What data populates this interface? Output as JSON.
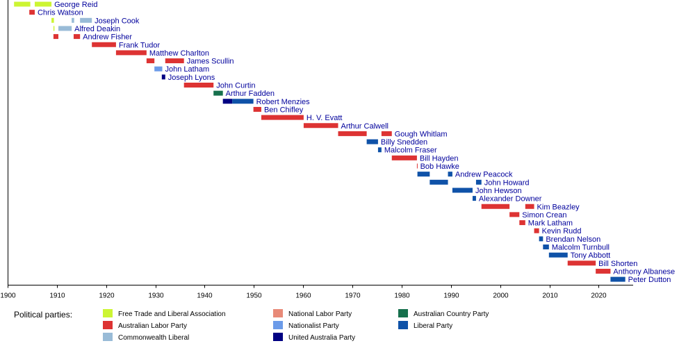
{
  "chart_data": {
    "type": "bar",
    "orientation": "horizontal",
    "xlim": [
      1900,
      2027
    ],
    "xticks": [
      1900,
      1910,
      1920,
      1930,
      1940,
      1950,
      1960,
      1970,
      1980,
      1990,
      2000,
      2010,
      2020
    ],
    "grid": false,
    "legend": {
      "title": "Political parties:",
      "placement": "bottom",
      "items": [
        {
          "label": "Free Trade and Liberal Association",
          "color": "#ccf533"
        },
        {
          "label": "Australian Labor Party",
          "color": "#dd3333"
        },
        {
          "label": "Commonwealth Liberal",
          "color": "#99bbd7"
        },
        {
          "label": "National Labor Party",
          "color": "#e88a78"
        },
        {
          "label": "Nationalist Party",
          "color": "#6b9be9"
        },
        {
          "label": "United Australia Party",
          "color": "#000082"
        },
        {
          "label": "Australian Country Party",
          "color": "#16704d"
        },
        {
          "label": "Liberal Party",
          "color": "#0f52a8"
        }
      ]
    },
    "rows": [
      {
        "name": "George Reid",
        "segments": [
          {
            "start": 1901.3,
            "end": 1904.6,
            "party": "Free Trade and Liberal Association"
          },
          {
            "start": 1905.5,
            "end": 1908.9,
            "party": "Free Trade and Liberal Association"
          }
        ]
      },
      {
        "name": "Chris Watson",
        "segments": [
          {
            "start": 1904.4,
            "end": 1905.5,
            "party": "Australian Labor Party"
          }
        ]
      },
      {
        "name": "Joseph Cook",
        "segments": [
          {
            "start": 1908.9,
            "end": 1909.4,
            "party": "Free Trade and Liberal Association"
          },
          {
            "start": 1913.0,
            "end": 1913.5,
            "party": "Commonwealth Liberal"
          },
          {
            "start": 1914.7,
            "end": 1917.1,
            "party": "Commonwealth Liberal"
          }
        ]
      },
      {
        "name": "Alfred Deakin",
        "segments": [
          {
            "start": 1909.3,
            "end": 1909.5,
            "party": "Free Trade and Liberal Association"
          },
          {
            "start": 1910.3,
            "end": 1913.0,
            "party": "Commonwealth Liberal"
          }
        ]
      },
      {
        "name": "Andrew Fisher",
        "segments": [
          {
            "start": 1909.3,
            "end": 1910.3,
            "party": "Australian Labor Party"
          },
          {
            "start": 1913.4,
            "end": 1914.7,
            "party": "Australian Labor Party"
          }
        ]
      },
      {
        "name": "Frank Tudor",
        "segments": [
          {
            "start": 1917.1,
            "end": 1922.0,
            "party": "Australian Labor Party"
          }
        ]
      },
      {
        "name": "Matthew Charlton",
        "segments": [
          {
            "start": 1922.0,
            "end": 1928.2,
            "party": "Australian Labor Party"
          }
        ]
      },
      {
        "name": "James Scullin",
        "segments": [
          {
            "start": 1928.2,
            "end": 1929.8,
            "party": "Australian Labor Party"
          },
          {
            "start": 1932.0,
            "end": 1935.8,
            "party": "Australian Labor Party"
          }
        ]
      },
      {
        "name": "John Latham",
        "segments": [
          {
            "start": 1929.8,
            "end": 1931.4,
            "party": "Nationalist Party"
          }
        ]
      },
      {
        "name": "Joseph Lyons",
        "segments": [
          {
            "start": 1931.3,
            "end": 1932.0,
            "party": "United Australia Party"
          }
        ]
      },
      {
        "name": "John Curtin",
        "segments": [
          {
            "start": 1935.8,
            "end": 1941.8,
            "party": "Australian Labor Party"
          }
        ]
      },
      {
        "name": "Arthur Fadden",
        "segments": [
          {
            "start": 1941.8,
            "end": 1943.7,
            "party": "Australian Country Party"
          }
        ]
      },
      {
        "name": "Robert Menzies",
        "segments": [
          {
            "start": 1943.7,
            "end": 1945.6,
            "party": "United Australia Party"
          },
          {
            "start": 1945.6,
            "end": 1949.9,
            "party": "Liberal Party"
          }
        ]
      },
      {
        "name": "Ben Chifley",
        "segments": [
          {
            "start": 1949.9,
            "end": 1951.5,
            "party": "Australian Labor Party"
          }
        ]
      },
      {
        "name": "H. V. Evatt",
        "segments": [
          {
            "start": 1951.5,
            "end": 1960.1,
            "party": "Australian Labor Party"
          }
        ]
      },
      {
        "name": "Arthur Calwell",
        "segments": [
          {
            "start": 1960.1,
            "end": 1967.1,
            "party": "Australian Labor Party"
          }
        ]
      },
      {
        "name": "Gough Whitlam",
        "segments": [
          {
            "start": 1967.1,
            "end": 1972.9,
            "party": "Australian Labor Party"
          },
          {
            "start": 1975.9,
            "end": 1978.0,
            "party": "Australian Labor Party"
          }
        ]
      },
      {
        "name": "Billy Snedden",
        "segments": [
          {
            "start": 1972.9,
            "end": 1975.2,
            "party": "Liberal Party"
          }
        ]
      },
      {
        "name": "Malcolm Fraser",
        "segments": [
          {
            "start": 1975.2,
            "end": 1975.9,
            "party": "Liberal Party"
          }
        ]
      },
      {
        "name": "Bill Hayden",
        "segments": [
          {
            "start": 1978.0,
            "end": 1983.1,
            "party": "Australian Labor Party"
          }
        ]
      },
      {
        "name": "Bob Hawke",
        "segments": [
          {
            "start": 1983.1,
            "end": 1983.2,
            "party": "Australian Labor Party"
          }
        ]
      },
      {
        "name": "Andrew Peacock",
        "segments": [
          {
            "start": 1983.2,
            "end": 1985.7,
            "party": "Liberal Party"
          },
          {
            "start": 1989.4,
            "end": 1990.3,
            "party": "Liberal Party"
          }
        ]
      },
      {
        "name": "John Howard",
        "segments": [
          {
            "start": 1985.7,
            "end": 1989.4,
            "party": "Liberal Party"
          },
          {
            "start": 1995.1,
            "end": 1996.2,
            "party": "Liberal Party"
          }
        ]
      },
      {
        "name": "John Hewson",
        "segments": [
          {
            "start": 1990.3,
            "end": 1994.4,
            "party": "Liberal Party"
          }
        ]
      },
      {
        "name": "Alexander Downer",
        "segments": [
          {
            "start": 1994.4,
            "end": 1995.1,
            "party": "Liberal Party"
          }
        ]
      },
      {
        "name": "Kim Beazley",
        "segments": [
          {
            "start": 1996.2,
            "end": 2001.9,
            "party": "Australian Labor Party"
          },
          {
            "start": 2005.1,
            "end": 2006.9,
            "party": "Australian Labor Party"
          }
        ]
      },
      {
        "name": "Simon Crean",
        "segments": [
          {
            "start": 2001.9,
            "end": 2003.9,
            "party": "Australian Labor Party"
          }
        ]
      },
      {
        "name": "Mark Latham",
        "segments": [
          {
            "start": 2003.9,
            "end": 2005.1,
            "party": "Australian Labor Party"
          }
        ]
      },
      {
        "name": "Kevin Rudd",
        "segments": [
          {
            "start": 2006.9,
            "end": 2007.9,
            "party": "Australian Labor Party"
          }
        ]
      },
      {
        "name": "Brendan Nelson",
        "segments": [
          {
            "start": 2007.9,
            "end": 2008.7,
            "party": "Liberal Party"
          }
        ]
      },
      {
        "name": "Malcolm Turnbull",
        "segments": [
          {
            "start": 2008.7,
            "end": 2009.9,
            "party": "Liberal Party"
          }
        ]
      },
      {
        "name": "Tony Abbott",
        "segments": [
          {
            "start": 2009.9,
            "end": 2013.7,
            "party": "Liberal Party"
          }
        ]
      },
      {
        "name": "Bill Shorten",
        "segments": [
          {
            "start": 2013.7,
            "end": 2019.4,
            "party": "Australian Labor Party"
          }
        ]
      },
      {
        "name": "Anthony Albanese",
        "segments": [
          {
            "start": 2019.4,
            "end": 2022.4,
            "party": "Australian Labor Party"
          }
        ]
      },
      {
        "name": "Peter Dutton",
        "segments": [
          {
            "start": 2022.4,
            "end": 2025.4,
            "party": "Liberal Party"
          }
        ]
      }
    ]
  }
}
